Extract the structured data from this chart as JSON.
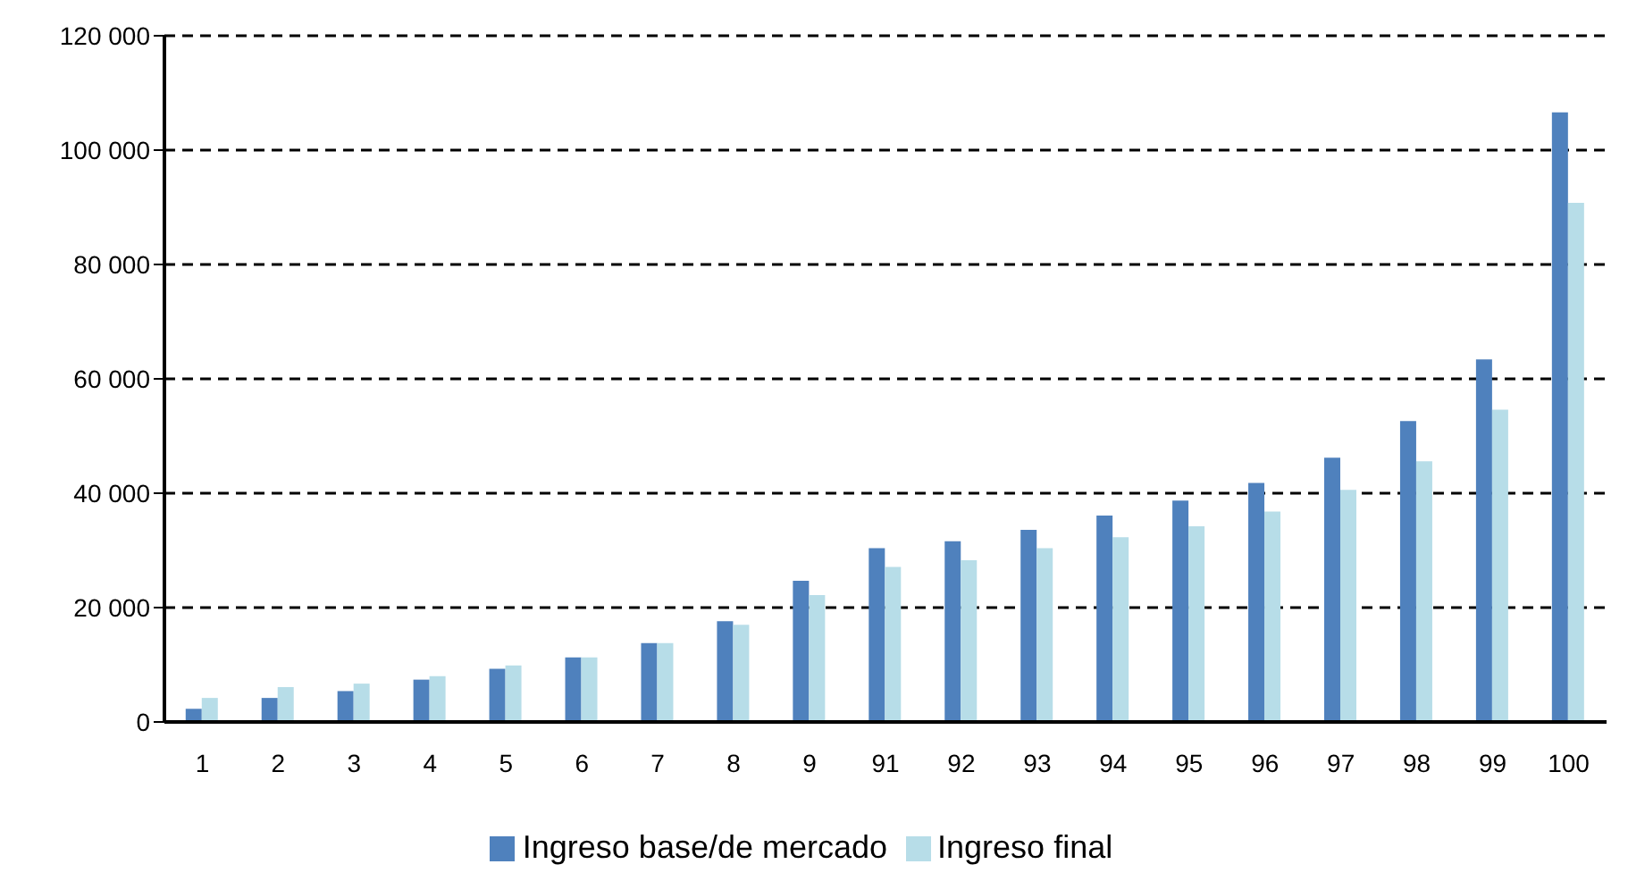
{
  "chart_data": {
    "type": "bar",
    "categories": [
      "1",
      "2",
      "3",
      "4",
      "5",
      "6",
      "7",
      "8",
      "9",
      "91",
      "92",
      "93",
      "94",
      "95",
      "96",
      "97",
      "98",
      "99",
      "100"
    ],
    "series": [
      {
        "name": "Ingreso base/de mercado",
        "color": "#4f81bd",
        "values": [
          2300,
          4200,
          5400,
          7400,
          9300,
          11300,
          13800,
          17600,
          24700,
          30400,
          31600,
          33600,
          36100,
          38700,
          41800,
          46200,
          52600,
          63400,
          106600
        ]
      },
      {
        "name": "Ingreso final",
        "color": "#b7dde8",
        "values": [
          4200,
          6100,
          6700,
          8000,
          9900,
          11300,
          13800,
          17000,
          22200,
          27100,
          28300,
          30400,
          32300,
          34200,
          36800,
          40600,
          45600,
          54600,
          90800
        ]
      }
    ],
    "ylim": [
      0,
      120000
    ],
    "yticks": [
      {
        "value": 0,
        "label": "0"
      },
      {
        "value": 20000,
        "label": "20 000"
      },
      {
        "value": 40000,
        "label": "40 000"
      },
      {
        "value": 60000,
        "label": "60 000"
      },
      {
        "value": 80000,
        "label": "80 000"
      },
      {
        "value": 100000,
        "label": "100 000"
      },
      {
        "value": 120000,
        "label": "120 000"
      }
    ],
    "grid": "y",
    "legend": "bottom"
  }
}
